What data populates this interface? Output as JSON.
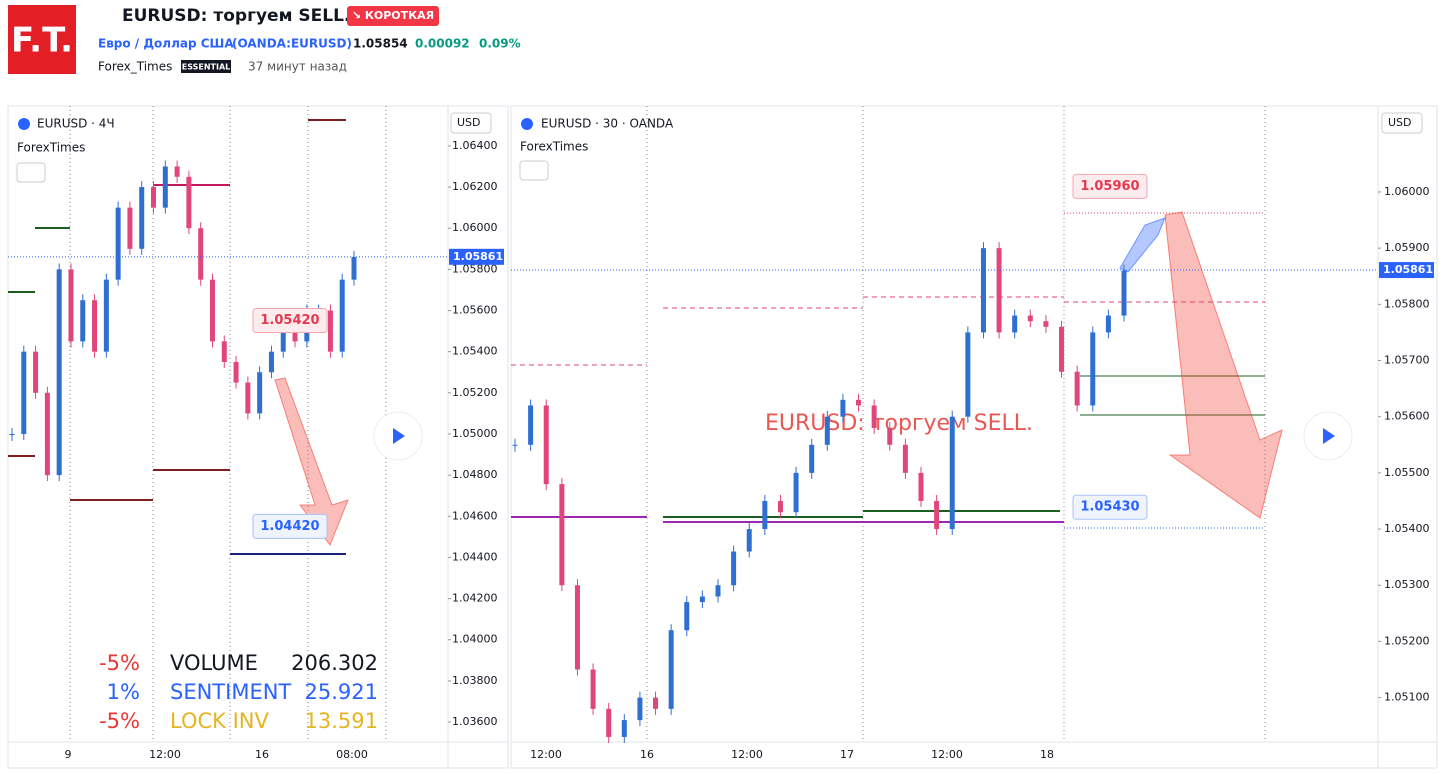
{
  "header": {
    "logo": "F.T.",
    "title": "EURUSD: торгуем SELL.",
    "badge": "↘ КОРОТКАЯ",
    "symbol_name": "Евро / Доллар США",
    "symbol_code": "(OANDA:EURUSD)",
    "price": "1.05854",
    "change": "0.00092",
    "change_pct": "0.09%",
    "author": "Forex_Times",
    "plan": "ESSENTIAL",
    "time": "37 минут назад"
  },
  "left_chart": {
    "symbol": "EURUSD · 4Ч",
    "source": "ForexTimes",
    "currency": "USD",
    "ylim": [
      1.03503,
      1.06594
    ],
    "yticks": [
      {
        "value": 1.064,
        "label": "1.06400"
      },
      {
        "value": 1.062,
        "label": "1.06200"
      },
      {
        "value": 1.06,
        "label": "1.06000"
      },
      {
        "value": 1.058,
        "label": "1.05800"
      },
      {
        "value": 1.056,
        "label": "1.05600"
      },
      {
        "value": 1.054,
        "label": "1.05400"
      },
      {
        "value": 1.052,
        "label": "1.05200"
      },
      {
        "value": 1.05,
        "label": "1.05000"
      },
      {
        "value": 1.048,
        "label": "1.04800"
      },
      {
        "value": 1.046,
        "label": "1.04600"
      },
      {
        "value": 1.044,
        "label": "1.04400"
      },
      {
        "value": 1.042,
        "label": "1.04200"
      },
      {
        "value": 1.04,
        "label": "1.04000"
      },
      {
        "value": 1.038,
        "label": "1.03800"
      },
      {
        "value": 1.036,
        "label": "1.03600"
      }
    ],
    "time_labels": [
      "9",
      "12:00",
      "16",
      "08:00"
    ],
    "closes": [
      1.05,
      1.054,
      1.052,
      1.048,
      1.058,
      1.0545,
      1.0565,
      1.054,
      1.0575,
      1.061,
      1.059,
      1.062,
      1.061,
      1.063,
      1.0625,
      1.06,
      1.0575,
      1.0545,
      1.0535,
      1.0525,
      1.051,
      1.053,
      1.054,
      1.055,
      1.0545,
      1.056,
      1.056,
      1.054,
      1.0575,
      1.0586
    ],
    "price_labels": [
      {
        "value": 1.0542,
        "label": "1.05420"
      },
      {
        "value": 1.0442,
        "label": "1.04420"
      }
    ],
    "last_price": {
      "value": 1.05861,
      "label": "1.05861"
    },
    "overlay": [
      {
        "pct": "-5%",
        "name": "VOLUME",
        "value": "206.302"
      },
      {
        "pct": "1%",
        "name": "SENTIMENT",
        "value": "25.921"
      },
      {
        "pct": "-5%",
        "name": "LOCK INV",
        "value": "13.591"
      }
    ]
  },
  "right_chart": {
    "symbol": "EURUSD · 30 · OANDA",
    "source": "ForexTimes",
    "currency": "USD",
    "ylim": [
      1.05021,
      1.06153
    ],
    "yticks": [
      {
        "value": 1.06,
        "label": "1.06000"
      },
      {
        "value": 1.059,
        "label": "1.05900"
      },
      {
        "value": 1.058,
        "label": "1.05800"
      },
      {
        "value": 1.057,
        "label": "1.05700"
      },
      {
        "value": 1.056,
        "label": "1.05600"
      },
      {
        "value": 1.055,
        "label": "1.05500"
      },
      {
        "value": 1.054,
        "label": "1.05400"
      },
      {
        "value": 1.053,
        "label": "1.05300"
      },
      {
        "value": 1.052,
        "label": "1.05200"
      },
      {
        "value": 1.051,
        "label": "1.05100"
      }
    ],
    "time_labels": [
      "12:00",
      "16",
      "12:00",
      "17",
      "12:00",
      "18"
    ],
    "closes": [
      1.0555,
      1.0562,
      1.0548,
      1.053,
      1.0515,
      1.0508,
      1.0503,
      1.0506,
      1.051,
      1.0508,
      1.0522,
      1.0527,
      1.0528,
      1.053,
      1.0536,
      1.054,
      1.0545,
      1.0543,
      1.055,
      1.0555,
      1.056,
      1.0563,
      1.0562,
      1.0558,
      1.0555,
      1.055,
      1.0545,
      1.054,
      1.056,
      1.0575,
      1.059,
      1.0575,
      1.0578,
      1.0577,
      1.0576,
      1.0568,
      1.0562,
      1.0575,
      1.0578,
      1.0586
    ],
    "price_labels": [
      {
        "value": 1.0596,
        "label": "1.05960"
      },
      {
        "value": 1.0543,
        "label": "1.05430"
      }
    ],
    "last_price": {
      "value": 1.05861,
      "label": "1.05861"
    }
  }
}
